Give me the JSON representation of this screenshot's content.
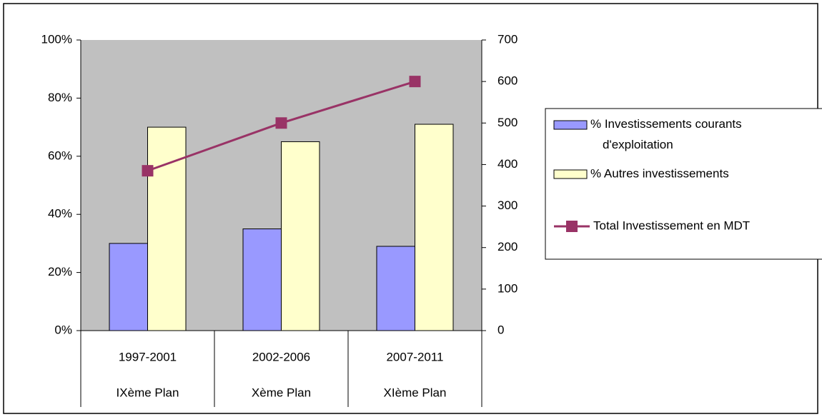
{
  "chart_data": {
    "type": "bar_line",
    "categories": [
      [
        "1997-2001",
        "IXème Plan"
      ],
      [
        "2002-2006",
        "Xème Plan"
      ],
      [
        "2007-2011",
        "XIème Plan"
      ]
    ],
    "series": [
      {
        "name": "% Investissements courants d'exploitation",
        "type": "bar",
        "color": "#9999ff",
        "values": [
          30,
          35,
          29
        ]
      },
      {
        "name": "% Autres investissements",
        "type": "bar",
        "color": "#ffffcc",
        "values": [
          70,
          65,
          71
        ]
      },
      {
        "name": "Total Investissement en MDT",
        "type": "line",
        "axis": "y2",
        "color": "#993366",
        "values": [
          385,
          500,
          600
        ]
      }
    ],
    "ylim": [
      0,
      100
    ],
    "yticks": [
      {
        "value": 0,
        "label": "0%"
      },
      {
        "value": 20,
        "label": "20%"
      },
      {
        "value": 40,
        "label": "40%"
      },
      {
        "value": 60,
        "label": "60%"
      },
      {
        "value": 80,
        "label": "80%"
      },
      {
        "value": 100,
        "label": "100%"
      }
    ],
    "y2lim": [
      0,
      700
    ],
    "y2ticks": [
      0,
      100,
      200,
      300,
      400,
      500,
      600,
      700
    ],
    "legend": "right"
  }
}
